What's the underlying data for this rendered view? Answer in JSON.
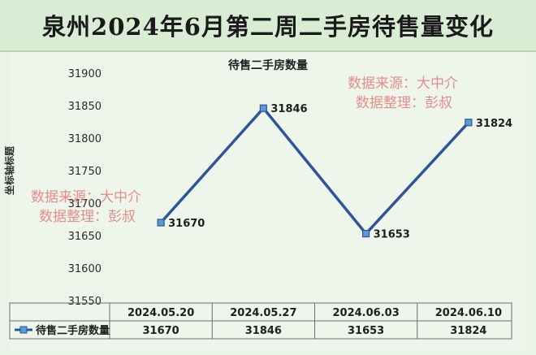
{
  "banner_title": "泉州2024年6月第二周二手房待售量变化",
  "watermark": {
    "line1": "数据来源：大中介",
    "line2": "数据整理：彭叔"
  },
  "chart_data": {
    "type": "line",
    "title": "待售二手房数量",
    "ylabel": "坐标轴标题",
    "xlabel": "",
    "categories": [
      "2024.05.20",
      "2024.05.27",
      "2024.06.03",
      "2024.06.10"
    ],
    "series": [
      {
        "name": "待售二手房数量",
        "values": [
          31670,
          31846,
          31653,
          31824
        ],
        "color": "#2f5597"
      }
    ],
    "ylim": [
      31550,
      31900
    ],
    "yticks": [
      31550,
      31600,
      31650,
      31700,
      31750,
      31800,
      31850,
      31900
    ],
    "grid": false,
    "data_table": true,
    "marker_color": "#5b9bd5"
  }
}
